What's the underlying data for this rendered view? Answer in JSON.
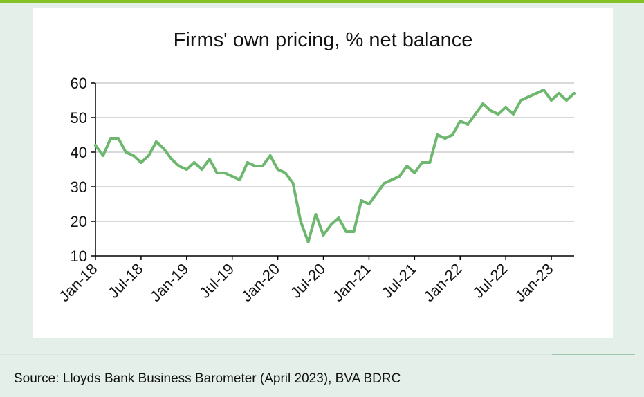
{
  "source": "Source: Lloyds Bank Business Barometer (April 2023), BVA BDRC",
  "colors": {
    "line": "#6db76e",
    "accent_bar": "#84c225",
    "grid": "#d9d9d9"
  },
  "chart_data": {
    "type": "line",
    "title": "Firms' own pricing, % net balance",
    "xlabel": "",
    "ylabel": "",
    "ylim": [
      10,
      60
    ],
    "yticks": [
      10,
      20,
      30,
      40,
      50,
      60
    ],
    "xtick_labels": [
      "Jan-18",
      "Jul-18",
      "Jan-19",
      "Jul-19",
      "Jan-20",
      "Jul-20",
      "Jan-21",
      "Jul-21",
      "Jan-22",
      "Jul-22",
      "Jan-23"
    ],
    "grid": true,
    "legend": "none",
    "series": [
      {
        "name": "",
        "x": [
          "Jan-18",
          "Feb-18",
          "Mar-18",
          "Apr-18",
          "May-18",
          "Jun-18",
          "Jul-18",
          "Aug-18",
          "Sep-18",
          "Oct-18",
          "Nov-18",
          "Dec-18",
          "Jan-19",
          "Feb-19",
          "Mar-19",
          "Apr-19",
          "May-19",
          "Jun-19",
          "Jul-19",
          "Aug-19",
          "Sep-19",
          "Oct-19",
          "Nov-19",
          "Dec-19",
          "Jan-20",
          "Feb-20",
          "Mar-20",
          "Apr-20",
          "May-20",
          "Jun-20",
          "Jul-20",
          "Aug-20",
          "Sep-20",
          "Oct-20",
          "Nov-20",
          "Dec-20",
          "Jan-21",
          "Feb-21",
          "Mar-21",
          "Apr-21",
          "May-21",
          "Jun-21",
          "Jul-21",
          "Aug-21",
          "Sep-21",
          "Oct-21",
          "Nov-21",
          "Dec-21",
          "Jan-22",
          "Feb-22",
          "Mar-22",
          "Apr-22",
          "May-22",
          "Jun-22",
          "Jul-22",
          "Aug-22",
          "Sep-22",
          "Oct-22",
          "Nov-22",
          "Dec-22",
          "Jan-23",
          "Feb-23",
          "Mar-23",
          "Apr-23"
        ],
        "values": [
          42,
          39,
          44,
          44,
          40,
          39,
          37,
          39,
          43,
          41,
          38,
          36,
          35,
          37,
          35,
          38,
          34,
          34,
          33,
          32,
          37,
          36,
          36,
          39,
          35,
          34,
          31,
          20,
          14,
          22,
          16,
          19,
          21,
          17,
          17,
          26,
          25,
          28,
          31,
          32,
          33,
          36,
          34,
          37,
          37,
          45,
          44,
          45,
          49,
          48,
          51,
          54,
          52,
          51,
          53,
          51,
          55,
          56,
          57,
          58,
          55,
          57,
          55,
          57
        ]
      }
    ]
  }
}
